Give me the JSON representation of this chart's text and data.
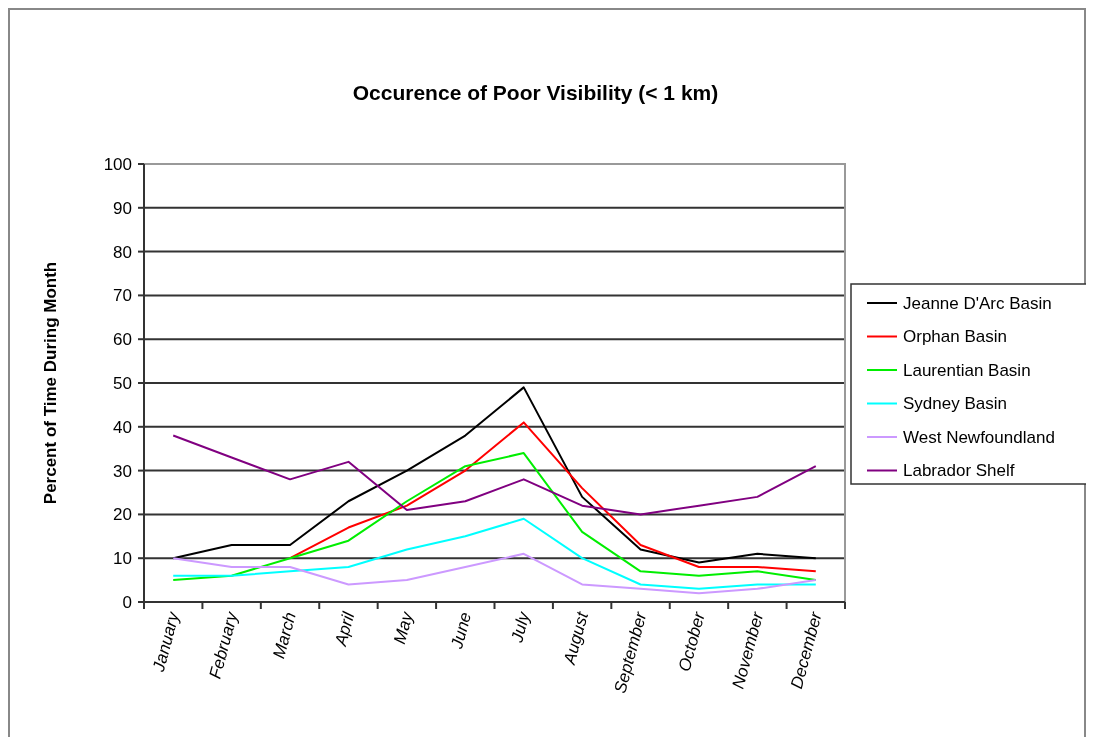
{
  "chart_data": {
    "type": "line",
    "title": "Occurence of Poor Visibility (< 1 km)",
    "ylabel": "Percent of Time During Month",
    "categories": [
      "January",
      "February",
      "March",
      "April",
      "May",
      "June",
      "July",
      "August",
      "September",
      "October",
      "November",
      "December"
    ],
    "series": [
      {
        "name": "Jeanne D'Arc Basin",
        "color": "#000000",
        "values": [
          10,
          13,
          13,
          23,
          30,
          38,
          49,
          24,
          12,
          9,
          11,
          10
        ]
      },
      {
        "name": "Orphan Basin",
        "color": "#ff0000",
        "values": [
          null,
          null,
          10,
          17,
          22,
          30,
          41,
          26,
          13,
          8,
          8,
          7
        ]
      },
      {
        "name": "Laurentian Basin",
        "color": "#00ee00",
        "values": [
          5,
          6,
          10,
          14,
          23,
          31,
          34,
          16,
          7,
          6,
          7,
          5
        ]
      },
      {
        "name": "Sydney Basin",
        "color": "#00ffff",
        "values": [
          6,
          6,
          7,
          8,
          12,
          15,
          19,
          10,
          4,
          3,
          4,
          4
        ]
      },
      {
        "name": "West Newfoundland",
        "color": "#cc99ff",
        "values": [
          10,
          8,
          8,
          4,
          5,
          8,
          11,
          4,
          3,
          2,
          3,
          5
        ]
      },
      {
        "name": "Labrador Shelf",
        "color": "#800080",
        "values": [
          38,
          33,
          28,
          32,
          21,
          23,
          28,
          22,
          20,
          22,
          24,
          31
        ]
      }
    ],
    "ylim": [
      0,
      100
    ],
    "yticks": [
      0,
      10,
      20,
      30,
      40,
      50,
      60,
      70,
      80,
      90,
      100
    ],
    "grid": "y",
    "legend": "right",
    "marker": "none",
    "line_style": "solid"
  }
}
